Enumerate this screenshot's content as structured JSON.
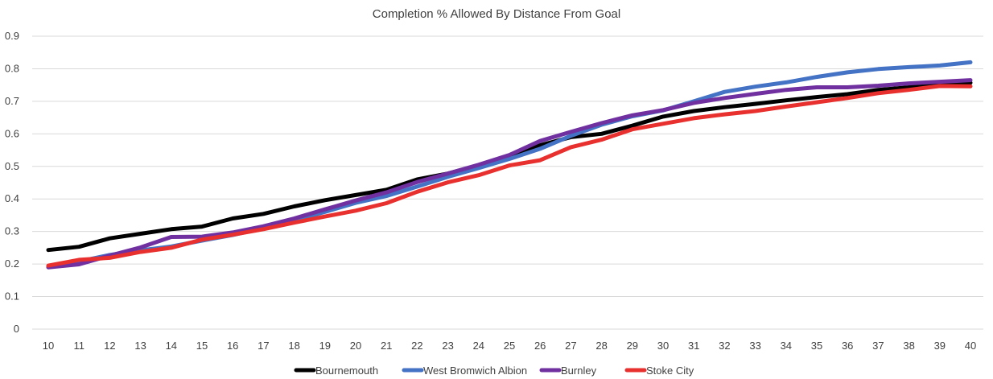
{
  "chart_data": {
    "type": "line",
    "title": "Completion % Allowed By Distance From Goal",
    "xlabel": "",
    "ylabel": "",
    "x": [
      10,
      11,
      12,
      13,
      14,
      15,
      16,
      17,
      18,
      19,
      20,
      21,
      22,
      23,
      24,
      25,
      26,
      27,
      28,
      29,
      30,
      31,
      32,
      33,
      34,
      35,
      36,
      37,
      38,
      39,
      40
    ],
    "ylim": [
      0,
      0.9
    ],
    "yticks": [
      "0",
      "0.1",
      "0.2",
      "0.3",
      "0.4",
      "0.5",
      "0.6",
      "0.7",
      "0.8",
      "0.9"
    ],
    "grid": true,
    "legend_position": "bottom",
    "series": [
      {
        "name": "Bournemouth",
        "color": "#000000",
        "values": [
          0.243,
          0.253,
          0.279,
          0.293,
          0.307,
          0.315,
          0.34,
          0.354,
          0.377,
          0.396,
          0.412,
          0.428,
          0.46,
          0.478,
          0.503,
          0.53,
          0.565,
          0.59,
          0.6,
          0.625,
          0.653,
          0.67,
          0.682,
          0.692,
          0.703,
          0.713,
          0.722,
          0.735,
          0.743,
          0.752,
          0.757
        ]
      },
      {
        "name": "West Bromwich Albion",
        "color": "#4472C4",
        "values": [
          0.193,
          0.208,
          0.228,
          0.242,
          0.254,
          0.272,
          0.289,
          0.31,
          0.334,
          0.36,
          0.388,
          0.409,
          0.438,
          0.468,
          0.495,
          0.523,
          0.554,
          0.594,
          0.628,
          0.654,
          0.672,
          0.7,
          0.729,
          0.745,
          0.758,
          0.775,
          0.789,
          0.799,
          0.805,
          0.81,
          0.82
        ]
      },
      {
        "name": "Burnley",
        "color": "#7030A0",
        "values": [
          0.19,
          0.199,
          0.226,
          0.251,
          0.283,
          0.284,
          0.297,
          0.316,
          0.34,
          0.368,
          0.395,
          0.42,
          0.452,
          0.478,
          0.505,
          0.535,
          0.578,
          0.606,
          0.633,
          0.657,
          0.673,
          0.695,
          0.71,
          0.723,
          0.735,
          0.743,
          0.743,
          0.748,
          0.755,
          0.76,
          0.765
        ]
      },
      {
        "name": "Stoke City",
        "color": "#E8312F",
        "values": [
          0.195,
          0.213,
          0.219,
          0.237,
          0.25,
          0.275,
          0.29,
          0.307,
          0.327,
          0.346,
          0.364,
          0.387,
          0.422,
          0.451,
          0.473,
          0.503,
          0.519,
          0.559,
          0.582,
          0.614,
          0.631,
          0.648,
          0.66,
          0.67,
          0.684,
          0.697,
          0.71,
          0.725,
          0.735,
          0.747,
          0.746
        ]
      }
    ]
  }
}
